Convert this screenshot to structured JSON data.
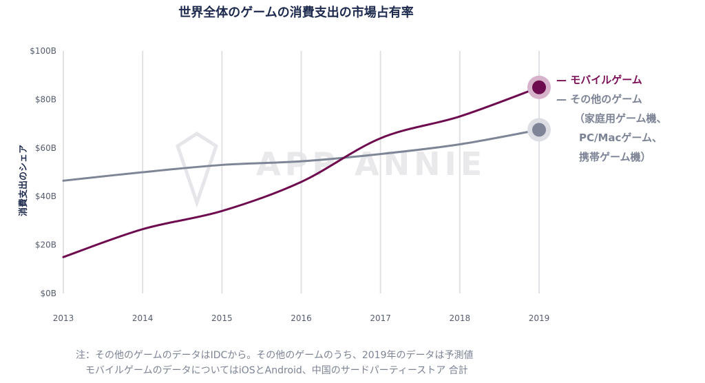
{
  "colors": {
    "mobile": "#6e0b4f",
    "other": "#7e8597",
    "grid": "#e1e1e5",
    "title": "#1d2a4d"
  },
  "watermark": "APP ANNIE",
  "chart_data": {
    "type": "line",
    "title": "世界全体のゲームの消費支出の市場占有率",
    "xlabel": "",
    "ylabel": "消費支出のシェア",
    "categories": [
      "2013",
      "2014",
      "2015",
      "2016",
      "2017",
      "2018",
      "2019"
    ],
    "ylim": [
      0,
      100
    ],
    "ytick_labels": [
      "$0B",
      "$20B",
      "$40B",
      "$60B",
      "$80B",
      "$100B"
    ],
    "ytick_values": [
      0,
      20,
      40,
      60,
      80,
      100
    ],
    "grid": true,
    "series": [
      {
        "name": "モバイルゲーム",
        "values": [
          15,
          26.5,
          34,
          46,
          64,
          73,
          85
        ]
      },
      {
        "name": "その他のゲーム",
        "values": [
          46.5,
          50,
          53,
          54.5,
          57.5,
          61.5,
          67.5
        ]
      }
    ],
    "legend": {
      "mobile": "— モバイルゲーム",
      "other_lines": [
        "— その他のゲーム",
        "（家庭用ゲーム機、",
        "PC/Macゲーム、",
        "携帯ゲーム機）"
      ]
    }
  },
  "footnote": {
    "line1": "注：その他のゲームのデータはIDCから。その他のゲームのうち、2019年のデータは予測値",
    "line2": "モバイルゲームのデータについてはiOSとAndroid、中国のサードパーティーストア 合計"
  }
}
